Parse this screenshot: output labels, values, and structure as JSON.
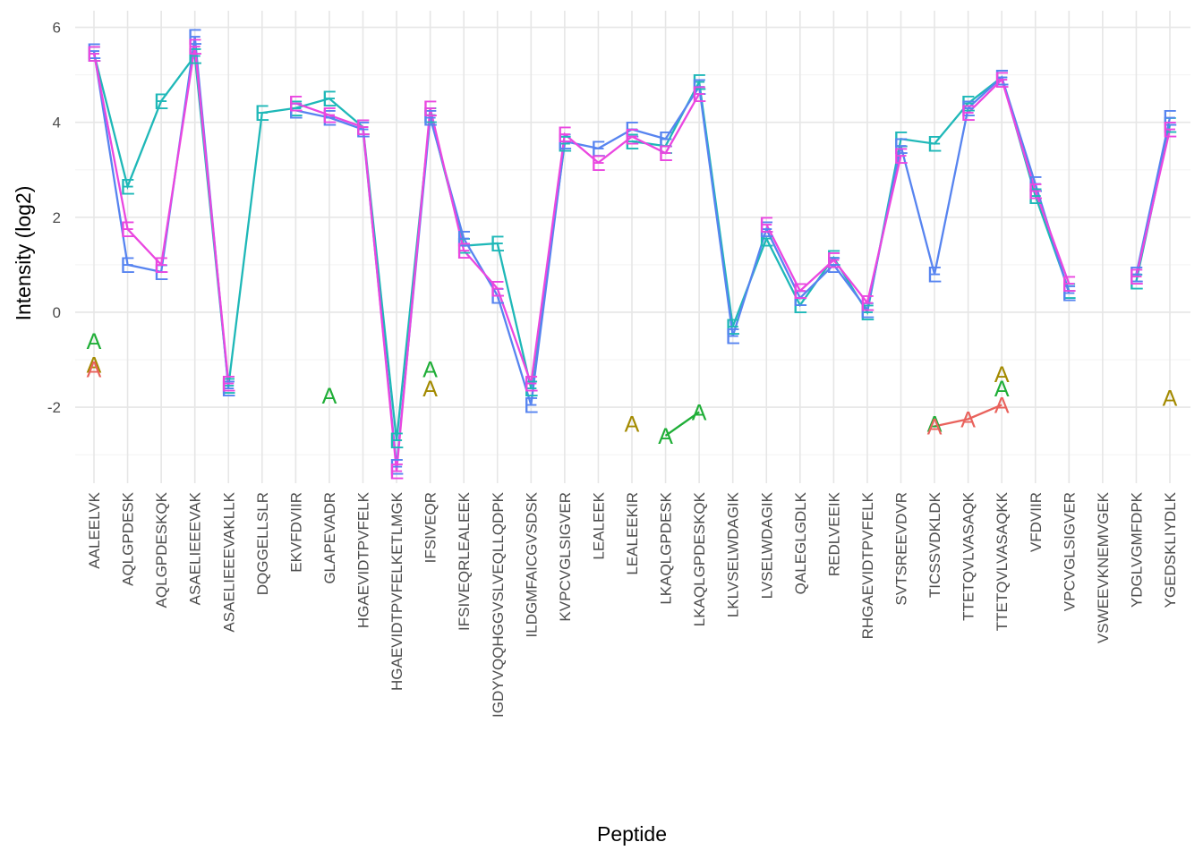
{
  "chart_data": {
    "type": "line",
    "xlabel": "Peptide",
    "ylabel": "Intensity (log2)",
    "ylim": [
      -3.6,
      6.35
    ],
    "yticks": [
      -2,
      0,
      2,
      4,
      6
    ],
    "grid": true,
    "legend": "none",
    "categories": [
      "AALEELVK",
      "AQLGPDESK",
      "AQLGPDESKQK",
      "ASAELIEEEVAK",
      "ASAELIEEEVAKLLK",
      "DQGGELLSLR",
      "EKVFDVIIR",
      "GLAPEVADR",
      "HGAEVIDTPVFELK",
      "HGAEVIDTPVFELKETLMGK",
      "IFSIVEQR",
      "IFSIVEQRLEALEEK",
      "IGDYVQQHGGVSLVEQLLQDPK",
      "ILDGMFAICGVSDSK",
      "KVPCVGLSIGVER",
      "LEALEEK",
      "LEALEEKIR",
      "LKAQLGPDESK",
      "LKAQLGPDESKQK",
      "LKLVSELWDAGIK",
      "LVSELWDAGIK",
      "QALEGLGDLK",
      "REDLVEEIK",
      "RHGAEVIDTPVFELK",
      "SVTSREEVDVR",
      "TICSSVDKLDK",
      "TTETQVLVASAQK",
      "TTETQVLVASAQKK",
      "VFDVIIR",
      "VPCVGLSIGVER",
      "VSWEEVKNEMVGEK",
      "YDGLVGMFDPK",
      "YGEDSKLIYDLK"
    ],
    "series": [
      {
        "marker": "E",
        "color": "#1fb8b8",
        "points": [
          [
            0,
            5.45
          ],
          [
            1,
            2.65
          ],
          [
            2,
            4.45
          ],
          [
            3,
            5.4
          ],
          [
            4,
            -1.55
          ],
          [
            5,
            4.2
          ],
          [
            6,
            4.3
          ],
          [
            7,
            4.5
          ],
          [
            8,
            3.9
          ],
          [
            9,
            -2.7
          ],
          [
            10,
            4.15
          ],
          [
            11,
            1.4
          ],
          [
            12,
            1.45
          ],
          [
            13,
            -1.6
          ],
          [
            14,
            3.55
          ],
          [
            15,
            null
          ],
          [
            16,
            3.6
          ],
          [
            17,
            3.5
          ],
          [
            18,
            4.85
          ],
          [
            19,
            -0.3
          ],
          [
            20,
            1.55
          ],
          [
            21,
            0.15
          ],
          [
            22,
            1.15
          ],
          [
            23,
            0.0
          ],
          [
            24,
            3.65
          ],
          [
            25,
            3.55
          ],
          [
            26,
            4.4
          ],
          [
            27,
            4.95
          ],
          [
            28,
            2.45
          ],
          [
            29,
            0.45
          ],
          [
            30,
            null
          ],
          [
            31,
            0.65
          ],
          [
            32,
            3.95
          ]
        ]
      },
      {
        "marker": "E",
        "color": "#5784f0",
        "points": [
          [
            0,
            5.5
          ],
          [
            1,
            1.0
          ],
          [
            2,
            0.85
          ],
          [
            3,
            5.8
          ],
          [
            4,
            -1.6
          ],
          [
            5,
            null
          ],
          [
            6,
            4.25
          ],
          [
            7,
            4.1
          ],
          [
            8,
            3.85
          ],
          [
            9,
            -3.25
          ],
          [
            10,
            4.1
          ],
          [
            11,
            1.55
          ],
          [
            12,
            0.35
          ],
          [
            13,
            -1.95
          ],
          [
            14,
            3.6
          ],
          [
            15,
            3.45
          ],
          [
            16,
            3.85
          ],
          [
            17,
            3.65
          ],
          [
            18,
            4.75
          ],
          [
            19,
            -0.5
          ],
          [
            20,
            1.75
          ],
          [
            21,
            0.3
          ],
          [
            22,
            1.0
          ],
          [
            23,
            0.05
          ],
          [
            24,
            3.5
          ],
          [
            25,
            0.8
          ],
          [
            26,
            4.3
          ],
          [
            27,
            4.95
          ],
          [
            28,
            2.7
          ],
          [
            29,
            0.4
          ],
          [
            30,
            null
          ],
          [
            31,
            0.8
          ],
          [
            32,
            4.1
          ]
        ]
      },
      {
        "marker": "E",
        "color": "#ea47e0",
        "points": [
          [
            0,
            5.45
          ],
          [
            1,
            1.75
          ],
          [
            2,
            1.0
          ],
          [
            3,
            5.6
          ],
          [
            4,
            -1.5
          ],
          [
            5,
            null
          ],
          [
            6,
            4.4
          ],
          [
            7,
            4.15
          ],
          [
            8,
            3.9
          ],
          [
            9,
            -3.35
          ],
          [
            10,
            4.3
          ],
          [
            11,
            1.3
          ],
          [
            12,
            0.5
          ],
          [
            13,
            -1.5
          ],
          [
            14,
            3.75
          ],
          [
            15,
            3.15
          ],
          [
            16,
            3.7
          ],
          [
            17,
            3.35
          ],
          [
            18,
            4.6
          ],
          [
            19,
            null
          ],
          [
            20,
            1.85
          ],
          [
            21,
            0.45
          ],
          [
            22,
            1.1
          ],
          [
            23,
            0.2
          ],
          [
            24,
            3.3
          ],
          [
            25,
            null
          ],
          [
            26,
            4.2
          ],
          [
            27,
            4.9
          ],
          [
            28,
            2.55
          ],
          [
            29,
            0.6
          ],
          [
            30,
            null
          ],
          [
            31,
            0.75
          ],
          [
            32,
            3.85
          ]
        ]
      },
      {
        "marker": "A",
        "color": "#a38a00",
        "points": [
          [
            0,
            -1.1
          ],
          [
            7,
            null
          ],
          [
            10,
            -1.6
          ],
          [
            16,
            -2.35
          ],
          [
            27,
            -1.3
          ],
          [
            32,
            -1.8
          ]
        ]
      },
      {
        "marker": "A",
        "color": "#1fae37",
        "points": [
          [
            0,
            -0.6
          ],
          [
            7,
            -1.75
          ],
          [
            10,
            -1.2
          ],
          [
            17,
            -2.6
          ],
          [
            18,
            -2.1
          ],
          [
            25,
            -2.35
          ],
          [
            27,
            -1.6
          ]
        ]
      },
      {
        "marker": "A",
        "color": "#e9625c",
        "points": [
          [
            0,
            -1.2
          ],
          [
            25,
            -2.4
          ],
          [
            26,
            -2.25
          ],
          [
            27,
            -1.95
          ]
        ]
      }
    ]
  }
}
